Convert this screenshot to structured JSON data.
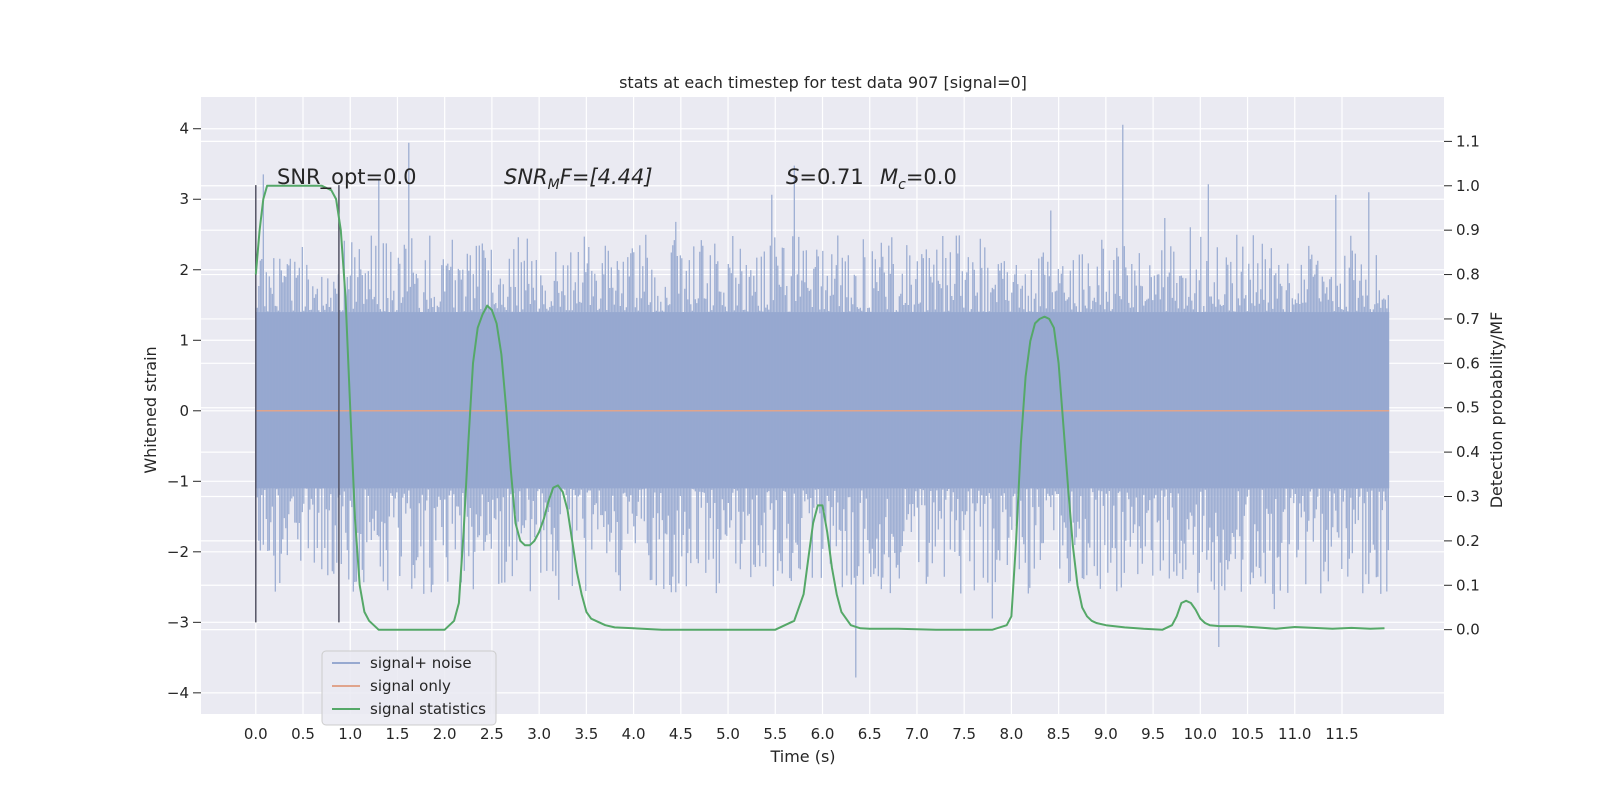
{
  "chart_data": {
    "type": "line",
    "title": "stats at each timestep for test data 907 [signal=0]",
    "xlabel": "Time (s)",
    "ylabel": "Whitened strain",
    "y2label": "Detection probability/MF",
    "xlim": [
      -0.58,
      12.58
    ],
    "ylim": [
      -4.3,
      4.45
    ],
    "y2lim": [
      -0.19,
      1.2
    ],
    "x_ticks": [
      "0.0",
      "0.5",
      "1.0",
      "1.5",
      "2.0",
      "2.5",
      "3.0",
      "3.5",
      "4.0",
      "4.5",
      "5.0",
      "5.5",
      "6.0",
      "6.5",
      "7.0",
      "7.5",
      "8.0",
      "8.5",
      "9.0",
      "9.5",
      "10.0",
      "10.5",
      "11.0",
      "11.5"
    ],
    "y_ticks": [
      "4",
      "3",
      "2",
      "1",
      "0",
      "−1",
      "−2",
      "−3",
      "−4"
    ],
    "y2_ticks": [
      "1.1",
      "1.0",
      "0.9",
      "0.8",
      "0.7",
      "0.6",
      "0.5",
      "0.4",
      "0.3",
      "0.2",
      "0.1",
      "0.0"
    ],
    "grid": true,
    "legend_position": "lower-left",
    "annotations": {
      "snr_opt": "SNR_opt=0.0",
      "snr_mf_main": "SNR",
      "snr_mf_sub": "M",
      "snr_mf_tail": "F=[4.44]",
      "s_main": "S",
      "s_tail": "=0.71",
      "mc_main": "M",
      "mc_sub": "c",
      "mc_tail": "=0.0"
    },
    "vertical_markers_x": [
      0.0,
      0.88
    ],
    "series": [
      {
        "name": "signal+ noise",
        "color": "#97a9d0",
        "kind": "noise",
        "x_range": [
          0.0,
          12.0
        ],
        "core_band": [
          -1.1,
          1.4
        ],
        "typical_peak_range": [
          -2.6,
          2.5
        ],
        "max": 4.1,
        "min": -3.8
      },
      {
        "name": "signal only",
        "color": "#e0a48c",
        "x": [
          0.0,
          12.0
        ],
        "y": [
          0.0,
          0.0
        ]
      },
      {
        "name": "signal statistics",
        "color": "#55a868",
        "axis": "right",
        "x": [
          0.0,
          0.04,
          0.08,
          0.12,
          0.2,
          0.3,
          0.4,
          0.5,
          0.6,
          0.7,
          0.75,
          0.8,
          0.85,
          0.9,
          0.95,
          1.0,
          1.05,
          1.1,
          1.15,
          1.2,
          1.3,
          1.5,
          1.8,
          2.0,
          2.1,
          2.15,
          2.2,
          2.25,
          2.3,
          2.35,
          2.4,
          2.45,
          2.5,
          2.55,
          2.6,
          2.65,
          2.7,
          2.75,
          2.8,
          2.85,
          2.9,
          2.95,
          3.0,
          3.05,
          3.1,
          3.15,
          3.2,
          3.25,
          3.3,
          3.35,
          3.4,
          3.45,
          3.5,
          3.55,
          3.6,
          3.7,
          3.8,
          4.0,
          4.3,
          4.6,
          4.9,
          5.2,
          5.5,
          5.7,
          5.8,
          5.85,
          5.9,
          5.95,
          6.0,
          6.05,
          6.1,
          6.15,
          6.2,
          6.3,
          6.4,
          6.5,
          6.8,
          7.2,
          7.5,
          7.8,
          7.95,
          8.0,
          8.05,
          8.1,
          8.15,
          8.2,
          8.25,
          8.3,
          8.35,
          8.4,
          8.45,
          8.5,
          8.55,
          8.6,
          8.65,
          8.7,
          8.75,
          8.8,
          8.85,
          8.9,
          9.0,
          9.2,
          9.4,
          9.6,
          9.7,
          9.75,
          9.8,
          9.85,
          9.9,
          9.95,
          10.0,
          10.05,
          10.1,
          10.2,
          10.4,
          10.6,
          10.8,
          11.0,
          11.2,
          11.4,
          11.6,
          11.8,
          11.95
        ],
        "y": [
          0.8,
          0.9,
          0.97,
          1.0,
          1.0,
          1.0,
          1.0,
          1.0,
          1.0,
          1.0,
          0.995,
          0.99,
          0.97,
          0.9,
          0.75,
          0.5,
          0.25,
          0.1,
          0.04,
          0.02,
          0.0,
          0.0,
          0.0,
          0.0,
          0.02,
          0.06,
          0.22,
          0.42,
          0.6,
          0.68,
          0.71,
          0.73,
          0.72,
          0.69,
          0.62,
          0.5,
          0.36,
          0.24,
          0.2,
          0.19,
          0.19,
          0.2,
          0.22,
          0.25,
          0.29,
          0.32,
          0.325,
          0.31,
          0.27,
          0.2,
          0.13,
          0.08,
          0.04,
          0.025,
          0.02,
          0.01,
          0.005,
          0.003,
          0.0,
          0.0,
          0.0,
          0.0,
          0.0,
          0.02,
          0.08,
          0.16,
          0.24,
          0.28,
          0.28,
          0.22,
          0.14,
          0.08,
          0.04,
          0.01,
          0.003,
          0.002,
          0.002,
          0.0,
          0.0,
          0.0,
          0.01,
          0.03,
          0.2,
          0.42,
          0.57,
          0.65,
          0.69,
          0.7,
          0.705,
          0.7,
          0.68,
          0.6,
          0.46,
          0.32,
          0.19,
          0.1,
          0.05,
          0.03,
          0.02,
          0.015,
          0.01,
          0.005,
          0.002,
          0.0,
          0.01,
          0.03,
          0.06,
          0.065,
          0.06,
          0.045,
          0.025,
          0.015,
          0.01,
          0.008,
          0.008,
          0.005,
          0.002,
          0.006,
          0.004,
          0.002,
          0.004,
          0.002,
          0.003
        ]
      }
    ]
  }
}
